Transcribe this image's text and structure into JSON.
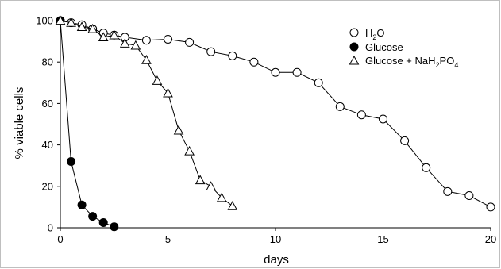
{
  "chart_data": {
    "type": "line",
    "xlabel": "days",
    "ylabel": "% viable cells",
    "xlim": [
      0,
      20
    ],
    "ylim": [
      0,
      100
    ],
    "xticks": [
      0,
      5,
      10,
      15,
      20
    ],
    "yticks": [
      0,
      20,
      40,
      60,
      80,
      100
    ],
    "grid": false,
    "legend_position": "top-right",
    "series": [
      {
        "name": "H2O",
        "marker": "circle-open",
        "color": "#000000",
        "x": [
          0,
          0.5,
          1,
          1.5,
          2,
          2.5,
          3,
          4,
          5,
          6,
          7,
          8,
          9,
          10,
          11,
          12,
          13,
          14,
          15,
          16,
          17,
          18,
          19,
          20
        ],
        "y": [
          100,
          99,
          98,
          96,
          94,
          93,
          92,
          90.5,
          91,
          89.5,
          85,
          83,
          80,
          75,
          75,
          70,
          58.5,
          54.5,
          52.5,
          42,
          29,
          17.5,
          15.5,
          10
        ]
      },
      {
        "name": "Glucose",
        "marker": "circle-filled",
        "color": "#000000",
        "x": [
          0,
          0.5,
          1,
          1.5,
          2,
          2.5
        ],
        "y": [
          100,
          32,
          11,
          5.5,
          2.5,
          0.5
        ]
      },
      {
        "name": "Glucose + NaH2PO4",
        "marker": "triangle-open",
        "color": "#000000",
        "x": [
          0,
          0.5,
          1,
          1.5,
          2,
          2.5,
          3,
          3.5,
          4,
          4.5,
          5,
          5.5,
          6,
          6.5,
          7,
          7.5,
          8
        ],
        "y": [
          100,
          99,
          97,
          96,
          92,
          93,
          89,
          88,
          81,
          71,
          65,
          47,
          37,
          23,
          20,
          14.5,
          10.5
        ]
      }
    ]
  },
  "legend": {
    "h2o": {
      "main1": "H",
      "sub1": "2",
      "main2": "O"
    },
    "glucose": {
      "main1": "Glucose"
    },
    "glucose_phosphate": {
      "main1": "Glucose + NaH",
      "sub1": "2",
      "main2": "PO",
      "sub2": "4"
    }
  }
}
